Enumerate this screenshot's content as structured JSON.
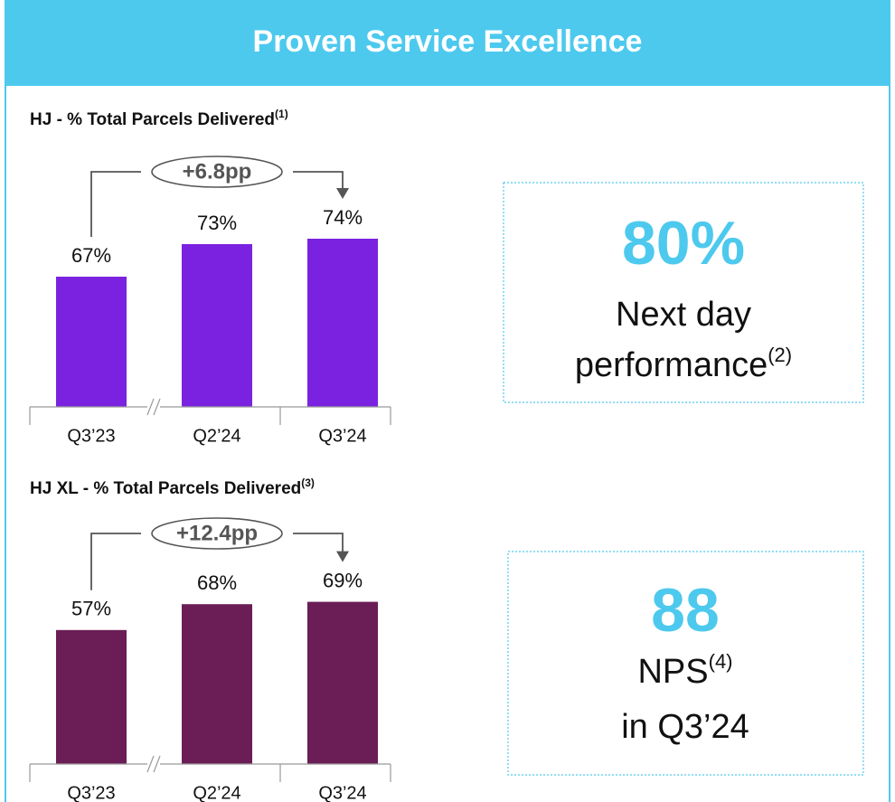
{
  "header": {
    "title": "Proven Service Excellence"
  },
  "chart_data": [
    {
      "type": "bar",
      "title": "HJ - % Total Parcels Delivered",
      "title_note": "(1)",
      "categories": [
        "Q3’23",
        "Q2’24",
        "Q3’24"
      ],
      "values": [
        67,
        73,
        74
      ],
      "value_labels": [
        "67%",
        "73%",
        "74%"
      ],
      "color": "#7a22e0",
      "ylim": [
        43,
        80
      ],
      "annotation": "+6.8pp"
    },
    {
      "type": "bar",
      "title": "HJ XL - % Total Parcels Delivered",
      "title_note": "(3)",
      "categories": [
        "Q3’23",
        "Q2’24",
        "Q3’24"
      ],
      "values": [
        57,
        68,
        69
      ],
      "value_labels": [
        "57%",
        "68%",
        "69%"
      ],
      "color": "#6b1d55",
      "ylim": [
        0,
        80
      ],
      "annotation": "+12.4pp"
    }
  ],
  "kpis": [
    {
      "big": "80%",
      "lines": [
        {
          "text": "Next day"
        },
        {
          "text": "performance",
          "note": "(2)"
        }
      ]
    },
    {
      "big": "88",
      "lines": [
        {
          "text": "NPS",
          "note": "(4)"
        },
        {
          "text": "in Q3’24"
        }
      ]
    }
  ]
}
